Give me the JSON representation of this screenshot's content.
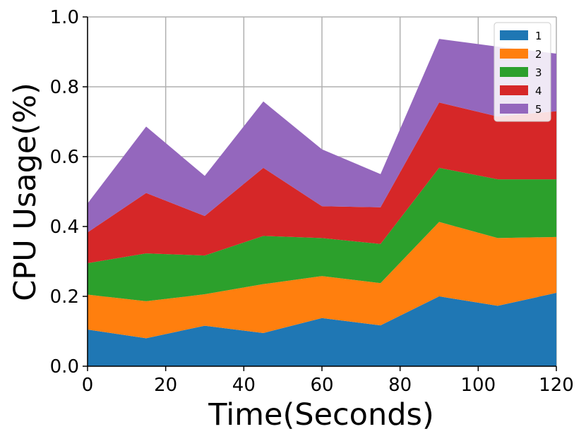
{
  "chart_data": {
    "type": "area",
    "stacked": true,
    "title": "",
    "xlabel": "Time(Seconds)",
    "ylabel": "CPU Usage(%)",
    "x": [
      0,
      15,
      30,
      45,
      60,
      75,
      90,
      105,
      120
    ],
    "xlim": [
      0,
      120
    ],
    "ylim": [
      0.0,
      1.0
    ],
    "xticks": [
      "0",
      "20",
      "40",
      "60",
      "80",
      "100",
      "120"
    ],
    "yticks": [
      "0.0",
      "0.2",
      "0.4",
      "0.6",
      "0.8",
      "1.0"
    ],
    "grid": true,
    "legend_position": "top-right",
    "series": [
      {
        "name": "1",
        "color": "#1f77b4",
        "values": [
          0.105,
          0.08,
          0.116,
          0.095,
          0.138,
          0.117,
          0.2,
          0.173,
          0.21
        ]
      },
      {
        "name": "2",
        "color": "#ff7f0e",
        "values": [
          0.1,
          0.106,
          0.09,
          0.14,
          0.12,
          0.121,
          0.213,
          0.194,
          0.16
        ]
      },
      {
        "name": "3",
        "color": "#2ca02c",
        "values": [
          0.09,
          0.137,
          0.111,
          0.138,
          0.109,
          0.112,
          0.155,
          0.168,
          0.165
        ]
      },
      {
        "name": "4",
        "color": "#d62728",
        "values": [
          0.088,
          0.173,
          0.113,
          0.195,
          0.091,
          0.105,
          0.187,
          0.18,
          0.195
        ]
      },
      {
        "name": "5",
        "color": "#9467bd",
        "values": [
          0.083,
          0.19,
          0.115,
          0.19,
          0.163,
          0.095,
          0.182,
          0.2,
          0.165
        ]
      }
    ]
  }
}
